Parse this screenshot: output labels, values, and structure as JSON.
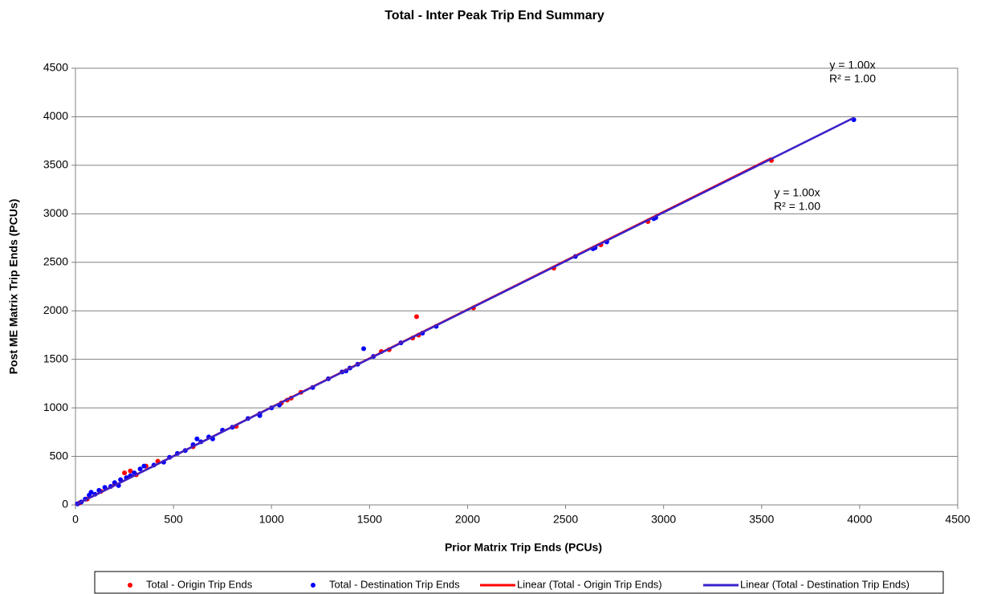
{
  "chart_data": {
    "type": "scatter",
    "title": "Total - Inter Peak Trip End Summary",
    "x_label": "Prior Matrix Trip Ends (PCUs)",
    "y_label": "Post ME Matrix Trip Ends (PCUs)",
    "xlim": [
      0,
      4500
    ],
    "ylim": [
      0,
      4500
    ],
    "xticks": [
      0,
      500,
      1000,
      1500,
      2000,
      2500,
      3000,
      3500,
      4000,
      4500
    ],
    "yticks": [
      0,
      500,
      1000,
      1500,
      2000,
      2500,
      3000,
      3500,
      4000,
      4500
    ],
    "grid": true,
    "legend": "bottom",
    "annotations": [
      {
        "lines": [
          "y = 1.00x",
          "R² = 1.00"
        ]
      },
      {
        "lines": [
          "y = 1.00x",
          "R² = 1.00"
        ]
      }
    ],
    "series": [
      {
        "name": "Total - Origin Trip Ends",
        "color": "#ff0000",
        "trendline_name": "Linear (Total - Origin Trip Ends)",
        "trendline_color": "#ff0000",
        "x": [
          1740,
          3550,
          2030,
          2440,
          2680,
          2920,
          1600,
          1560,
          1720,
          1150,
          1080,
          1050,
          820,
          420,
          250,
          280,
          310,
          360,
          600,
          130,
          60,
          20,
          200,
          1750,
          2650,
          1100
        ],
        "values": [
          1940,
          3550,
          2030,
          2440,
          2680,
          2920,
          1600,
          1580,
          1720,
          1160,
          1080,
          1050,
          810,
          450,
          330,
          350,
          310,
          400,
          600,
          140,
          60,
          20,
          220,
          1750,
          2650,
          1100
        ]
      },
      {
        "name": "Total - Destination Trip Ends",
        "color": "#0000ff",
        "trendline_name": "Linear (Total - Destination Trip Ends)",
        "trendline_color": "#3a22c8",
        "x": [
          3970,
          1470,
          2950,
          2960,
          2710,
          2640,
          2650,
          2550,
          1840,
          1770,
          1660,
          1520,
          1440,
          1400,
          1380,
          1360,
          1290,
          1210,
          1040,
          940,
          940,
          880,
          800,
          700,
          640,
          620,
          600,
          520,
          480,
          450,
          400,
          350,
          330,
          300,
          280,
          230,
          220,
          200,
          180,
          150,
          120,
          80,
          70,
          50,
          30,
          10,
          100,
          260,
          560,
          750,
          1000,
          680
        ],
        "values": [
          3970,
          1610,
          2950,
          2960,
          2710,
          2640,
          2650,
          2560,
          1840,
          1770,
          1670,
          1530,
          1450,
          1410,
          1380,
          1370,
          1300,
          1210,
          1030,
          940,
          920,
          890,
          800,
          680,
          650,
          680,
          620,
          530,
          490,
          440,
          410,
          400,
          370,
          330,
          300,
          260,
          200,
          230,
          190,
          180,
          150,
          130,
          100,
          60,
          30,
          10,
          110,
          280,
          560,
          770,
          1000,
          700
        ]
      }
    ]
  }
}
